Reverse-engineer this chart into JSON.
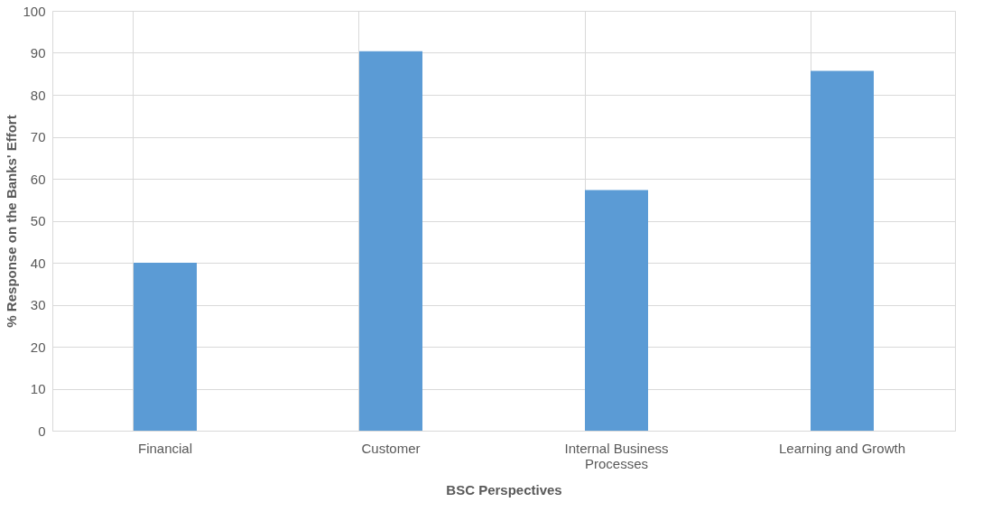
{
  "chart_data": {
    "type": "bar",
    "xlabel": "BSC Perspectives",
    "ylabel": "% Response on the Banks' Effort",
    "categories": [
      "Financial",
      "Customer",
      "Internal Business Processes",
      "Learning and Growth"
    ],
    "values": [
      40.0,
      90.4,
      57.3,
      85.7
    ],
    "color": "#5b9bd5",
    "ylim": [
      0,
      100
    ],
    "yticks": [
      0,
      10,
      20,
      30,
      40,
      50,
      60,
      70,
      80,
      90,
      100
    ],
    "grid": true
  }
}
